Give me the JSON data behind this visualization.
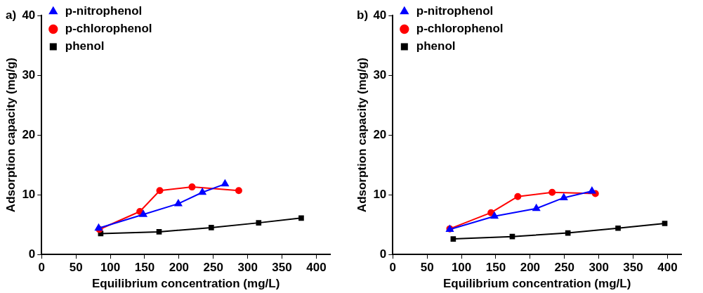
{
  "chart_data": [
    {
      "type": "line",
      "title": "a)",
      "xlabel": "Equilibrium concentration (mg/L)",
      "ylabel": "Adsorption capacity (mg/g)",
      "xlim": [
        0,
        420
      ],
      "xticks": [
        0,
        50,
        100,
        150,
        200,
        250,
        300,
        350,
        400
      ],
      "ylim": [
        0,
        40
      ],
      "yticks": [
        0,
        10,
        20,
        30,
        40
      ],
      "grid": false,
      "legend": "top left",
      "series": [
        {
          "name": "phenol",
          "color": "#000000",
          "marker": "square",
          "x": [
            86,
            171,
            247,
            316,
            378
          ],
          "values": [
            3.5,
            3.8,
            4.5,
            5.3,
            6.1
          ]
        },
        {
          "name": "p-chlorophenol",
          "color": "#ff0000",
          "marker": "circle",
          "x": [
            84,
            143,
            172,
            219,
            287
          ],
          "values": [
            4.2,
            7.2,
            10.7,
            11.3,
            10.7
          ]
        },
        {
          "name": "p-nitrophenol",
          "color": "#0000ff",
          "marker": "triangle",
          "x": [
            83,
            148,
            199,
            234,
            267
          ],
          "values": [
            4.4,
            6.7,
            8.5,
            10.4,
            11.8
          ]
        }
      ]
    },
    {
      "type": "line",
      "title": "b)",
      "xlabel": "Equilibrium concentration (mg/L)",
      "ylabel": "Adsorption capacity (mg/g)",
      "xlim": [
        0,
        420
      ],
      "xticks": [
        0,
        50,
        100,
        150,
        200,
        250,
        300,
        350,
        400
      ],
      "ylim": [
        0,
        40
      ],
      "yticks": [
        0,
        10,
        20,
        30,
        40
      ],
      "grid": false,
      "legend": "top left",
      "series": [
        {
          "name": "phenol",
          "color": "#000000",
          "marker": "square",
          "x": [
            88,
            174,
            255,
            328,
            396
          ],
          "values": [
            2.6,
            3.0,
            3.6,
            4.4,
            5.2
          ]
        },
        {
          "name": "p-chlorophenol",
          "color": "#ff0000",
          "marker": "circle",
          "x": [
            83,
            143,
            182,
            232,
            295
          ],
          "values": [
            4.3,
            7.0,
            9.7,
            10.4,
            10.2
          ]
        },
        {
          "name": "p-nitrophenol",
          "color": "#0000ff",
          "marker": "triangle",
          "x": [
            83,
            148,
            209,
            249,
            290
          ],
          "values": [
            4.2,
            6.4,
            7.7,
            9.5,
            10.6
          ]
        }
      ]
    }
  ]
}
